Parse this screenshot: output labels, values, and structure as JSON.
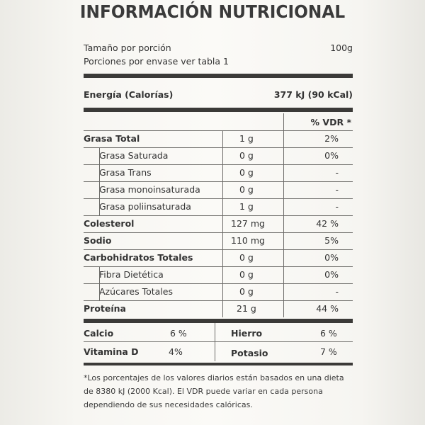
{
  "title": "INFORMACIÓN NUTRICIONAL",
  "serving": {
    "size_label": "Tamaño por porción",
    "size_value": "100g",
    "servings_label": "Porciones por envase ver tabla 1"
  },
  "energy": {
    "label": "Energía (Calorías)",
    "value": "377 kJ (90 kCal)"
  },
  "vdr_header": "% VDR *",
  "nutrients": [
    {
      "name": "Grasa Total",
      "amount": "1 g",
      "vdr": "2%"
    },
    {
      "name": "Grasa Saturada",
      "amount": "0 g",
      "vdr": "0%"
    },
    {
      "name": "Grasa Trans",
      "amount": "0 g",
      "vdr": "-"
    },
    {
      "name": "Grasa monoinsaturada",
      "amount": "0 g",
      "vdr": "-"
    },
    {
      "name": "Grasa poliinsaturada",
      "amount": "1 g",
      "vdr": "-"
    },
    {
      "name": "Colesterol",
      "amount": "127 mg",
      "vdr": "42 %"
    },
    {
      "name": "Sodio",
      "amount": "110 mg",
      "vdr": "5%"
    },
    {
      "name": "Carbohidratos Totales",
      "amount": "0 g",
      "vdr": "0%"
    },
    {
      "name": "Fibra Dietética",
      "amount": "0 g",
      "vdr": "0%"
    },
    {
      "name": "Azúcares Totales",
      "amount": "0 g",
      "vdr": "-"
    },
    {
      "name": "Proteína",
      "amount": "21 g",
      "vdr": "44 %"
    }
  ],
  "minerals": [
    {
      "name": "Calcio",
      "value": "6 %"
    },
    {
      "name": "Hierro",
      "value": "6 %"
    },
    {
      "name": "Vitamina D",
      "value": "4%"
    },
    {
      "name": "Potasio",
      "value": "7 %"
    }
  ],
  "footnote": "*Los porcentajes de los valores diarios están basados en una dieta de 8380 kJ (2000 Kcal). El VDR puede variar en cada persona dependiendo de sus necesidades calóricas."
}
